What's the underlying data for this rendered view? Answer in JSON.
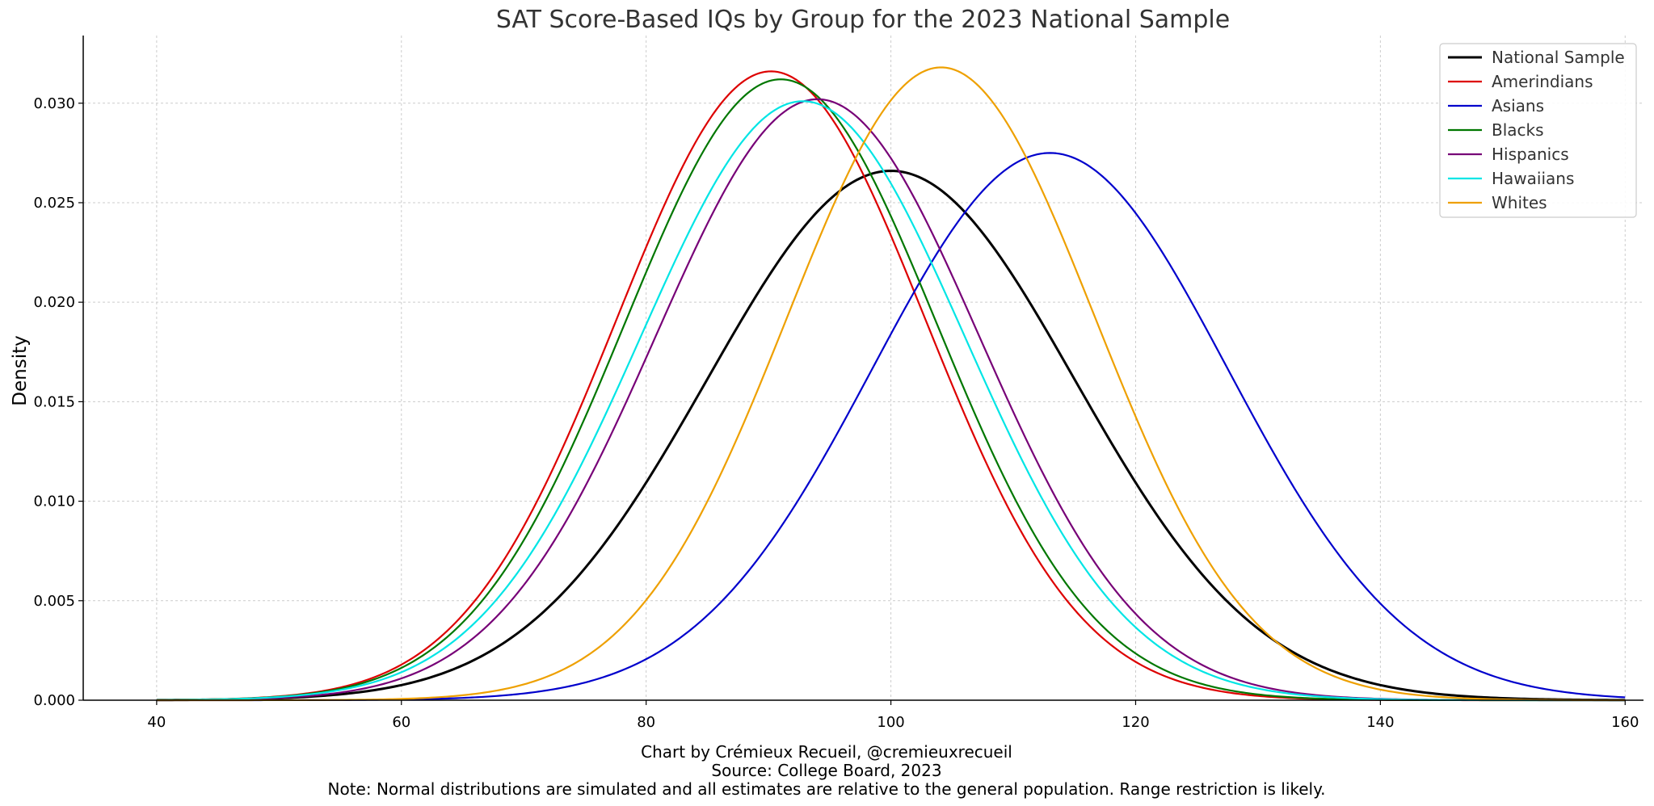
{
  "chart_data": {
    "type": "line",
    "title": "SAT Score-Based IQs by Group for the 2023 National Sample",
    "xlabel": "",
    "ylabel": "Density",
    "xlim": [
      34,
      161.5
    ],
    "ylim": [
      0,
      0.0334
    ],
    "x_ticks": [
      40,
      60,
      80,
      100,
      120,
      140,
      160
    ],
    "x_tick_labels": [
      "40",
      "60",
      "80",
      "100",
      "120",
      "140",
      "160"
    ],
    "y_ticks": [
      0,
      0.005,
      0.01,
      0.015,
      0.02,
      0.025,
      0.03
    ],
    "y_tick_labels": [
      "0.000",
      "0.005",
      "0.010",
      "0.015",
      "0.020",
      "0.025",
      "0.030"
    ],
    "grid": true,
    "legend_position": "top-right",
    "x_range": [
      40,
      160
    ],
    "series": [
      {
        "name": "National Sample",
        "color": "#000000",
        "mean": 100,
        "sd": 15,
        "peak": 0.0266
      },
      {
        "name": "Amerindians",
        "color": "#dd0000",
        "mean": 90.2,
        "sd": 12.6,
        "peak": 0.0316
      },
      {
        "name": "Asians",
        "color": "#0000cc",
        "mean": 113,
        "sd": 14.5,
        "peak": 0.0275
      },
      {
        "name": "Blacks",
        "color": "#007700",
        "mean": 91.0,
        "sd": 12.75,
        "peak": 0.0312
      },
      {
        "name": "Hispanics",
        "color": "#770077",
        "mean": 94.0,
        "sd": 13.2,
        "peak": 0.0302
      },
      {
        "name": "Hawaiians",
        "color": "#00e5e5",
        "mean": 92.8,
        "sd": 13.25,
        "peak": 0.0301
      },
      {
        "name": "Whites",
        "color": "#eea000",
        "mean": 104.1,
        "sd": 12.55,
        "peak": 0.0318
      }
    ]
  },
  "footer": {
    "line1": "Chart by Crémieux Recueil, @cremieuxrecueil",
    "line2": "Source: College Board, 2023",
    "line3": "Note: Normal distributions are simulated and all estimates are relative to the general population. Range restriction is likely."
  }
}
